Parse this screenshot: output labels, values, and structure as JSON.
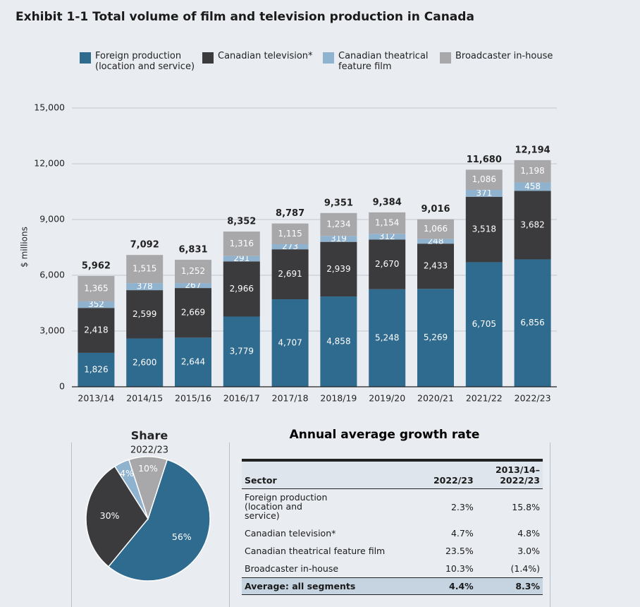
{
  "title": "Exhibit 1-1  Total volume of film and television production in Canada",
  "chart_data": [
    {
      "type": "bar",
      "stacked": true,
      "ylabel": "$ millions",
      "categories": [
        "2013/14",
        "2014/15",
        "2015/16",
        "2016/17",
        "2017/18",
        "2018/19",
        "2019/20",
        "2020/21",
        "2021/22",
        "2022/23"
      ],
      "series": [
        {
          "name": "Foreign production (location and service)",
          "color": "#2f6a8f",
          "values": [
            1826,
            2600,
            2644,
            3779,
            4707,
            4858,
            5248,
            5269,
            6705,
            6856
          ],
          "value_labels": [
            "1,826",
            "2,600",
            "2,644",
            "3,779",
            "4,707",
            "4,858",
            "5,248",
            "5,269",
            "6,705",
            "6,856"
          ]
        },
        {
          "name": "Canadian television*",
          "color": "#3b3b3d",
          "values": [
            2418,
            2599,
            2669,
            2966,
            2691,
            2939,
            2670,
            2433,
            3518,
            3682
          ],
          "value_labels": [
            "2,418",
            "2,599",
            "2,669",
            "2,966",
            "2,691",
            "2,939",
            "2,670",
            "2,433",
            "3,518",
            "3,682"
          ]
        },
        {
          "name": "Canadian theatrical feature film",
          "color": "#8fb2cf",
          "values": [
            352,
            378,
            267,
            291,
            273,
            319,
            312,
            248,
            371,
            458
          ]
        },
        {
          "name": "Broadcaster in-house",
          "color": "#a8a8aa",
          "values": [
            1365,
            1515,
            1252,
            1316,
            1115,
            1234,
            1154,
            1066,
            1086,
            1198
          ],
          "value_labels": [
            "1,365",
            "1,515",
            "1,252",
            "1,316",
            "1,115",
            "1,234",
            "1,154",
            "1,066",
            "1,086",
            "1,198"
          ]
        }
      ],
      "totals": [
        5962,
        7092,
        6831,
        8352,
        8787,
        9351,
        9384,
        9016,
        11680,
        12194
      ],
      "total_labels": [
        "5,962",
        "7,092",
        "6,831",
        "8,352",
        "8,787",
        "9,351",
        "9,384",
        "9,016",
        "11,680",
        "12,194"
      ],
      "ylim": [
        0,
        15000
      ],
      "yticks": [
        0,
        {
          "value": 3000,
          "label": "3,000"
        },
        {
          "value": 6000,
          "label": "6,000"
        },
        {
          "value": 9000,
          "label": "9,000"
        },
        {
          "value": 12000,
          "label": "12,000"
        },
        {
          "value": 15000,
          "label": "15,000"
        }
      ],
      "grid": true
    },
    {
      "type": "pie",
      "title": "Share",
      "subtitle": "2022/23",
      "values": [
        56,
        30,
        4,
        10
      ],
      "value_labels": [
        "56%",
        "30%",
        "4%",
        "10%"
      ],
      "colors": [
        "#2f6a8f",
        "#3b3b3d",
        "#8fb2cf",
        "#a8a8aa"
      ]
    }
  ],
  "table": {
    "title": "Annual average growth rate",
    "header": [
      "Sector",
      "2022/23",
      "2013/14–2022/23"
    ],
    "rows": [
      [
        "Foreign production (location and service)",
        "2.3%",
        "15.8%"
      ],
      [
        "Canadian television*",
        "4.7%",
        "4.8%"
      ],
      [
        "Canadian theatrical feature film",
        "23.5%",
        "3.0%"
      ],
      [
        "Broadcaster in-house",
        "10.3%",
        "(1.4%)"
      ]
    ],
    "footer": [
      "Average: all segments",
      "4.4%",
      "8.3%"
    ]
  }
}
